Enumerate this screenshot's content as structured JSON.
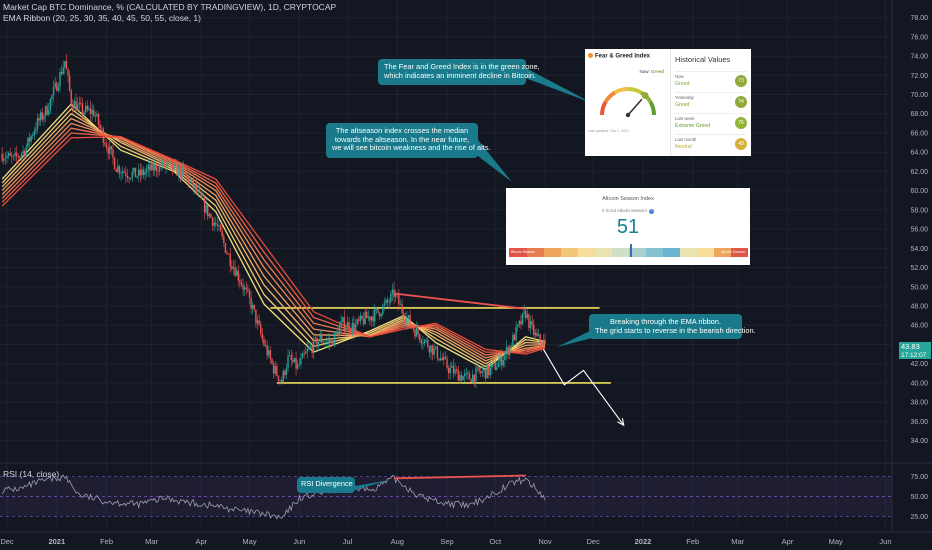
{
  "header": {
    "title_line": "Market Cap BTC Dominance, % (CALCULATED BY TRADINGVIEW), 1D, CRYPTOCAP",
    "indicator_line": "EMA Ribbon (20, 25, 30, 35, 40, 45, 50, 55, close, 1)"
  },
  "price_label": {
    "value": "43.83",
    "time": "17:12:07"
  },
  "rsi_label": "RSI (14, close)",
  "annotations": {
    "fear_greed_note": [
      "The Fear and Greed Index is in the green zone,",
      "which indicates an imminent decline in Bitcoin."
    ],
    "altseason_note": [
      "The altseason index crosses the median",
      "towards the altseason. In the near future,",
      "we will see bitcoin weakness and the rise of alts."
    ],
    "ema_note": [
      "Breaking through the EMA ribbon.",
      "The grid starts to reverse in the bearish direction."
    ],
    "rsi_divergence": "RSI Divergence"
  },
  "fear_greed_card": {
    "title": "Fear & Greed Index",
    "now_label": "Now:",
    "now_value": "Greed",
    "gauge_value": 73,
    "updated_text": "Last updated: Nov 1, 2021",
    "history_title": "Historical Values",
    "rows": [
      {
        "label": "Now",
        "value": "Greed",
        "number": "73",
        "color": "#8faa3a"
      },
      {
        "label": "Yesterday",
        "value": "Greed",
        "number": "74",
        "color": "#8faa3a"
      },
      {
        "label": "Last week",
        "value": "Extreme Greed",
        "number": "76",
        "color": "#93b33b"
      },
      {
        "label": "Last month",
        "value": "Neutral",
        "number": "49",
        "color": "#d4b13a"
      }
    ]
  },
  "altseason_card": {
    "title": "Altcoin Season Index",
    "subtitle": "It is not Altcoin Season!",
    "value": "51",
    "left_label": "Bitcoin Season",
    "right_label": "Altcoin Season"
  },
  "colors": {
    "background": "#131722",
    "up_candle": "#26a69a",
    "down_candle": "#ef5350",
    "ribbon_fast": "#f5e07a",
    "ribbon_slow": "#e84a3a",
    "level_line": "#f0e05a",
    "trend_line": "#ef5350",
    "callout": "#187a8a",
    "rsi_line": "#9e9eb0",
    "rsi_band": "#7e57c2"
  },
  "chart_data": {
    "type": "candlestick",
    "y_axis": {
      "ticks": [
        "78.00",
        "76.00",
        "74.00",
        "72.00",
        "70.00",
        "68.00",
        "66.00",
        "64.00",
        "62.00",
        "60.00",
        "58.00",
        "56.00",
        "54.00",
        "52.00",
        "50.00",
        "48.00",
        "46.00",
        "44.00",
        "42.00",
        "40.00",
        "38.00",
        "36.00",
        "34.00"
      ],
      "range": [
        32.5,
        79
      ]
    },
    "rsi_axis": {
      "ticks": [
        "75.00",
        "50.00",
        "25.00"
      ],
      "range": [
        14,
        86
      ]
    },
    "x_axis": {
      "labels": [
        "Dec",
        "2021",
        "Feb",
        "Mar",
        "Apr",
        "May",
        "Jun",
        "Jul",
        "Aug",
        "Sep",
        "Oct",
        "Nov",
        "Dec",
        "2022",
        "Feb",
        "Mar",
        "Apr",
        "May",
        "Jun"
      ]
    },
    "price_series": [
      [
        "2020-11-28",
        63.8
      ],
      [
        "2020-12-05",
        63.2
      ],
      [
        "2020-12-12",
        64.2
      ],
      [
        "2020-12-19",
        66.8
      ],
      [
        "2020-12-26",
        68.5
      ],
      [
        "2021-01-02",
        71.5
      ],
      [
        "2021-01-06",
        73.5
      ],
      [
        "2021-01-10",
        69.3
      ],
      [
        "2021-01-17",
        68.3
      ],
      [
        "2021-01-24",
        68.2
      ],
      [
        "2021-01-31",
        65.2
      ],
      [
        "2021-02-07",
        62.5
      ],
      [
        "2021-02-14",
        61.8
      ],
      [
        "2021-02-21",
        61.6
      ],
      [
        "2021-02-28",
        62.2
      ],
      [
        "2021-03-07",
        62.7
      ],
      [
        "2021-03-14",
        62.3
      ],
      [
        "2021-03-21",
        61.8
      ],
      [
        "2021-03-28",
        60.2
      ],
      [
        "2021-04-04",
        58.0
      ],
      [
        "2021-04-11",
        56.2
      ],
      [
        "2021-04-18",
        53.2
      ],
      [
        "2021-04-25",
        50.8
      ],
      [
        "2021-05-02",
        48.2
      ],
      [
        "2021-05-09",
        44.5
      ],
      [
        "2021-05-16",
        41.5
      ],
      [
        "2021-05-21",
        40.2
      ],
      [
        "2021-05-25",
        42.5
      ],
      [
        "2021-05-31",
        41.6
      ],
      [
        "2021-06-07",
        43.5
      ],
      [
        "2021-06-14",
        44.5
      ],
      [
        "2021-06-21",
        44.2
      ],
      [
        "2021-06-28",
        46.2
      ],
      [
        "2021-07-05",
        45.8
      ],
      [
        "2021-07-12",
        46.7
      ],
      [
        "2021-07-19",
        47.2
      ],
      [
        "2021-07-26",
        48.3
      ],
      [
        "2021-07-30",
        49.3
      ],
      [
        "2021-08-05",
        47.2
      ],
      [
        "2021-08-12",
        45.5
      ],
      [
        "2021-08-19",
        44.2
      ],
      [
        "2021-08-26",
        43.0
      ],
      [
        "2021-09-02",
        41.5
      ],
      [
        "2021-09-09",
        40.8
      ],
      [
        "2021-09-14",
        40.5
      ],
      [
        "2021-09-20",
        41.0
      ],
      [
        "2021-09-27",
        41.2
      ],
      [
        "2021-10-04",
        42.2
      ],
      [
        "2021-10-10",
        43.8
      ],
      [
        "2021-10-15",
        45.6
      ],
      [
        "2021-10-20",
        47.3
      ],
      [
        "2021-10-23",
        45.8
      ],
      [
        "2021-10-27",
        44.6
      ],
      [
        "2021-10-31",
        44.2
      ],
      [
        "2021-11-01",
        43.83
      ]
    ],
    "ema_ribbon": {
      "periods": [
        20,
        25,
        30,
        35,
        40,
        45,
        50,
        55
      ],
      "series": [
        [
          [
            "2020-11-28",
            61.2
          ],
          [
            "2021-01-10",
            69.0
          ],
          [
            "2021-02-10",
            64.2
          ],
          [
            "2021-03-15",
            62.0
          ],
          [
            "2021-04-10",
            57.8
          ],
          [
            "2021-05-10",
            48.2
          ],
          [
            "2021-06-10",
            43.2
          ],
          [
            "2021-07-15",
            45.4
          ],
          [
            "2021-08-05",
            47.0
          ],
          [
            "2021-08-25",
            44.2
          ],
          [
            "2021-09-25",
            41.4
          ],
          [
            "2021-10-20",
            44.8
          ],
          [
            "2021-11-01",
            44.3
          ]
        ],
        [
          [
            "2020-11-28",
            60.8
          ],
          [
            "2021-01-10",
            68.5
          ],
          [
            "2021-02-10",
            64.6
          ],
          [
            "2021-03-15",
            62.2
          ],
          [
            "2021-04-10",
            58.4
          ],
          [
            "2021-05-10",
            49.2
          ],
          [
            "2021-06-10",
            43.8
          ],
          [
            "2021-07-15",
            45.2
          ],
          [
            "2021-08-05",
            46.8
          ],
          [
            "2021-08-25",
            44.6
          ],
          [
            "2021-09-25",
            41.7
          ],
          [
            "2021-10-20",
            44.5
          ],
          [
            "2021-11-01",
            44.2
          ]
        ],
        [
          [
            "2020-11-28",
            60.4
          ],
          [
            "2021-01-10",
            68.0
          ],
          [
            "2021-02-10",
            65.0
          ],
          [
            "2021-03-15",
            62.4
          ],
          [
            "2021-04-10",
            59.0
          ],
          [
            "2021-05-10",
            50.2
          ],
          [
            "2021-06-10",
            44.4
          ],
          [
            "2021-07-15",
            45.0
          ],
          [
            "2021-08-05",
            46.6
          ],
          [
            "2021-08-25",
            45.0
          ],
          [
            "2021-09-25",
            42.0
          ],
          [
            "2021-10-20",
            44.2
          ],
          [
            "2021-11-01",
            44.1
          ]
        ],
        [
          [
            "2020-11-28",
            60.0
          ],
          [
            "2021-01-10",
            67.5
          ],
          [
            "2021-02-10",
            65.2
          ],
          [
            "2021-03-15",
            62.6
          ],
          [
            "2021-04-10",
            59.5
          ],
          [
            "2021-05-10",
            51.1
          ],
          [
            "2021-06-10",
            45.0
          ],
          [
            "2021-07-15",
            44.9
          ],
          [
            "2021-08-05",
            46.4
          ],
          [
            "2021-08-25",
            45.3
          ],
          [
            "2021-09-25",
            42.3
          ],
          [
            "2021-10-20",
            43.9
          ],
          [
            "2021-11-01",
            44.0
          ]
        ],
        [
          [
            "2020-11-28",
            59.6
          ],
          [
            "2021-01-10",
            67.0
          ],
          [
            "2021-02-10",
            65.4
          ],
          [
            "2021-03-15",
            62.8
          ],
          [
            "2021-04-10",
            60.0
          ],
          [
            "2021-05-10",
            52.0
          ],
          [
            "2021-06-10",
            45.6
          ],
          [
            "2021-07-15",
            44.8
          ],
          [
            "2021-08-05",
            46.2
          ],
          [
            "2021-08-25",
            45.6
          ],
          [
            "2021-09-25",
            42.6
          ],
          [
            "2021-10-20",
            43.6
          ],
          [
            "2021-11-01",
            43.9
          ]
        ],
        [
          [
            "2020-11-28",
            59.2
          ],
          [
            "2021-01-10",
            66.5
          ],
          [
            "2021-02-10",
            65.5
          ],
          [
            "2021-03-15",
            63.0
          ],
          [
            "2021-04-10",
            60.4
          ],
          [
            "2021-05-10",
            52.8
          ],
          [
            "2021-06-10",
            46.2
          ],
          [
            "2021-07-15",
            44.8
          ],
          [
            "2021-08-05",
            46.0
          ],
          [
            "2021-08-25",
            45.8
          ],
          [
            "2021-09-25",
            42.9
          ],
          [
            "2021-10-20",
            43.4
          ],
          [
            "2021-11-01",
            43.8
          ]
        ],
        [
          [
            "2020-11-28",
            58.8
          ],
          [
            "2021-01-10",
            66.0
          ],
          [
            "2021-02-10",
            65.6
          ],
          [
            "2021-03-15",
            63.1
          ],
          [
            "2021-04-10",
            60.8
          ],
          [
            "2021-05-10",
            53.6
          ],
          [
            "2021-06-10",
            46.8
          ],
          [
            "2021-07-15",
            44.8
          ],
          [
            "2021-08-05",
            45.8
          ],
          [
            "2021-08-25",
            46.0
          ],
          [
            "2021-09-25",
            43.2
          ],
          [
            "2021-10-20",
            43.2
          ],
          [
            "2021-11-01",
            43.7
          ]
        ],
        [
          [
            "2020-11-28",
            58.4
          ],
          [
            "2021-01-10",
            65.5
          ],
          [
            "2021-02-10",
            65.6
          ],
          [
            "2021-03-15",
            63.2
          ],
          [
            "2021-04-10",
            61.2
          ],
          [
            "2021-05-10",
            54.4
          ],
          [
            "2021-06-10",
            47.4
          ],
          [
            "2021-07-15",
            44.8
          ],
          [
            "2021-08-05",
            45.6
          ],
          [
            "2021-08-25",
            46.2
          ],
          [
            "2021-09-25",
            43.5
          ],
          [
            "2021-10-20",
            43.0
          ],
          [
            "2021-11-01",
            43.6
          ]
        ]
      ]
    },
    "levels": [
      {
        "name": "resistance",
        "value": 47.8,
        "from": "2021-05-14",
        "to": "2021-12-05"
      },
      {
        "name": "support",
        "value": 40.0,
        "from": "2021-05-18",
        "to": "2021-12-12"
      }
    ],
    "trend_line": {
      "from": [
        "2021-07-30",
        49.3
      ],
      "to": [
        "2021-10-20",
        47.7
      ]
    },
    "projection": [
      [
        "2021-10-31",
        43.5
      ],
      [
        "2021-11-13",
        39.8
      ],
      [
        "2021-11-25",
        41.3
      ],
      [
        "2021-12-20",
        35.6
      ]
    ],
    "rsi_series": [
      [
        "2020-11-28",
        58
      ],
      [
        "2020-12-10",
        60
      ],
      [
        "2020-12-20",
        68
      ],
      [
        "2021-01-06",
        75
      ],
      [
        "2021-01-15",
        52
      ],
      [
        "2021-02-01",
        44
      ],
      [
        "2021-02-20",
        40
      ],
      [
        "2021-03-10",
        48
      ],
      [
        "2021-03-25",
        42
      ],
      [
        "2021-04-10",
        38
      ],
      [
        "2021-04-25",
        32
      ],
      [
        "2021-05-10",
        28
      ],
      [
        "2021-05-21",
        22
      ],
      [
        "2021-06-01",
        48
      ],
      [
        "2021-06-15",
        55
      ],
      [
        "2021-07-01",
        62
      ],
      [
        "2021-07-15",
        58
      ],
      [
        "2021-07-30",
        73
      ],
      [
        "2021-08-15",
        50
      ],
      [
        "2021-08-30",
        42
      ],
      [
        "2021-09-15",
        38
      ],
      [
        "2021-10-01",
        55
      ],
      [
        "2021-10-10",
        66
      ],
      [
        "2021-10-20",
        72
      ],
      [
        "2021-10-27",
        58
      ],
      [
        "2021-11-01",
        48
      ]
    ],
    "rsi_divergence": {
      "from": [
        "2021-07-30",
        73
      ],
      "to": [
        "2021-10-20",
        76.5
      ]
    }
  }
}
